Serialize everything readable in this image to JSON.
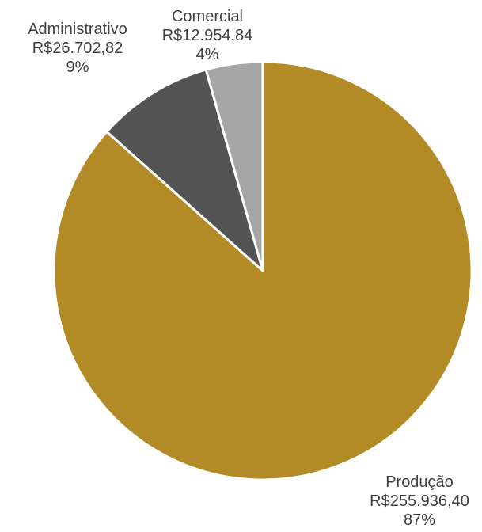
{
  "chart_data": {
    "type": "pie",
    "start_angle_deg": 0,
    "direction": "clockwise",
    "slices": [
      {
        "name": "Produção",
        "value_label": "R$255.936,40",
        "percent_label": "87%",
        "value": 255936.4,
        "color": "#B38B26"
      },
      {
        "name": "Administrativo",
        "value_label": "R$26.702,82",
        "percent_label": "9%",
        "value": 26702.82,
        "color": "#545454"
      },
      {
        "name": "Comercial",
        "value_label": "R$12.954,84",
        "percent_label": "4%",
        "value": 12954.84,
        "color": "#A6A6A6"
      }
    ],
    "legend": "none",
    "data_labels": "outside"
  }
}
